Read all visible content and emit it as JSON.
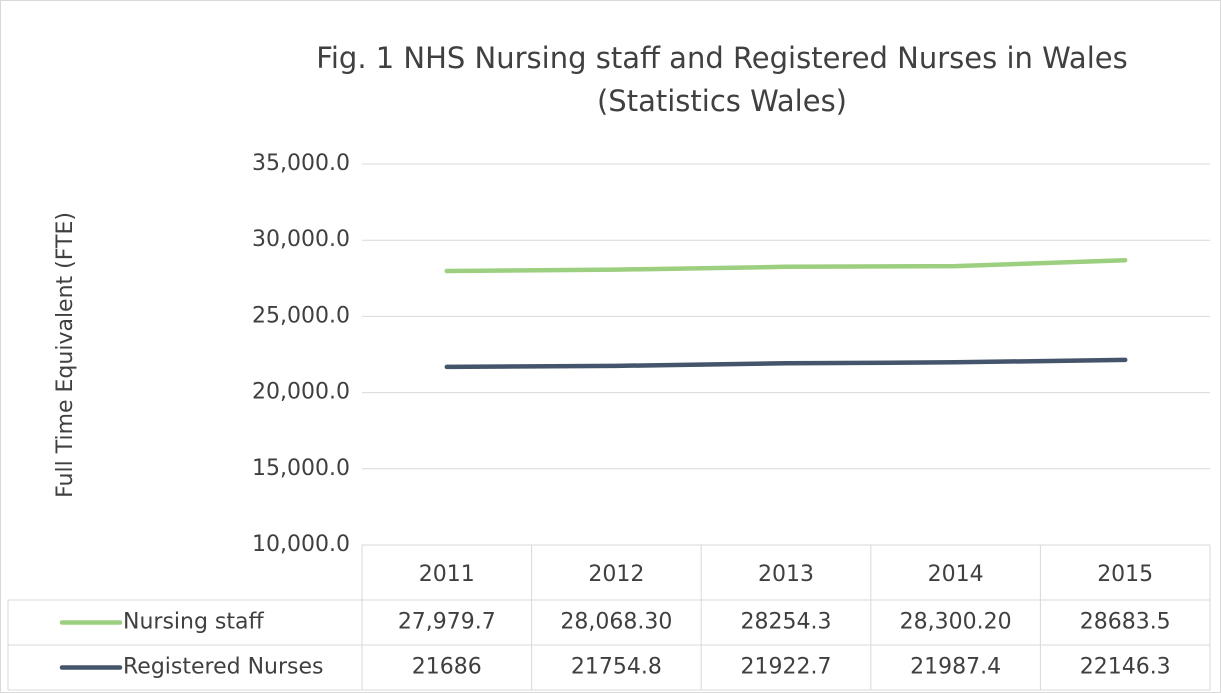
{
  "chart_data": {
    "type": "line",
    "title": "Fig. 1 NHS Nursing staff and Registered Nurses in Wales",
    "subtitle": "(Statistics Wales)",
    "y_label": "Full Time Equivalent (FTE)",
    "categories": [
      "2011",
      "2012",
      "2013",
      "2014",
      "2015"
    ],
    "series": [
      {
        "name": "Nursing staff",
        "color": "#9dcf80",
        "values": [
          27979.7,
          28068.3,
          28254.3,
          28300.2,
          28683.5
        ],
        "value_labels": [
          "27,979.7",
          "28,068.30",
          "28254.3",
          "28,300.20",
          "28683.5"
        ]
      },
      {
        "name": "Registered Nurses",
        "color": "#44546a",
        "values": [
          21686,
          21754.8,
          21922.7,
          21987.4,
          22146.3
        ]
      }
    ],
    "ylim": [
      10000,
      35000
    ],
    "yticks": [
      {
        "value": 10000,
        "label": "10,000.0"
      },
      {
        "value": 15000,
        "label": "15,000.0"
      },
      {
        "value": 20000,
        "label": "20,000.0"
      },
      {
        "value": 25000,
        "label": "25,000.0"
      },
      {
        "value": 30000,
        "label": "30,000.0"
      },
      {
        "value": 35000,
        "label": "35,000.0"
      }
    ],
    "grid": true,
    "data_table": true
  }
}
